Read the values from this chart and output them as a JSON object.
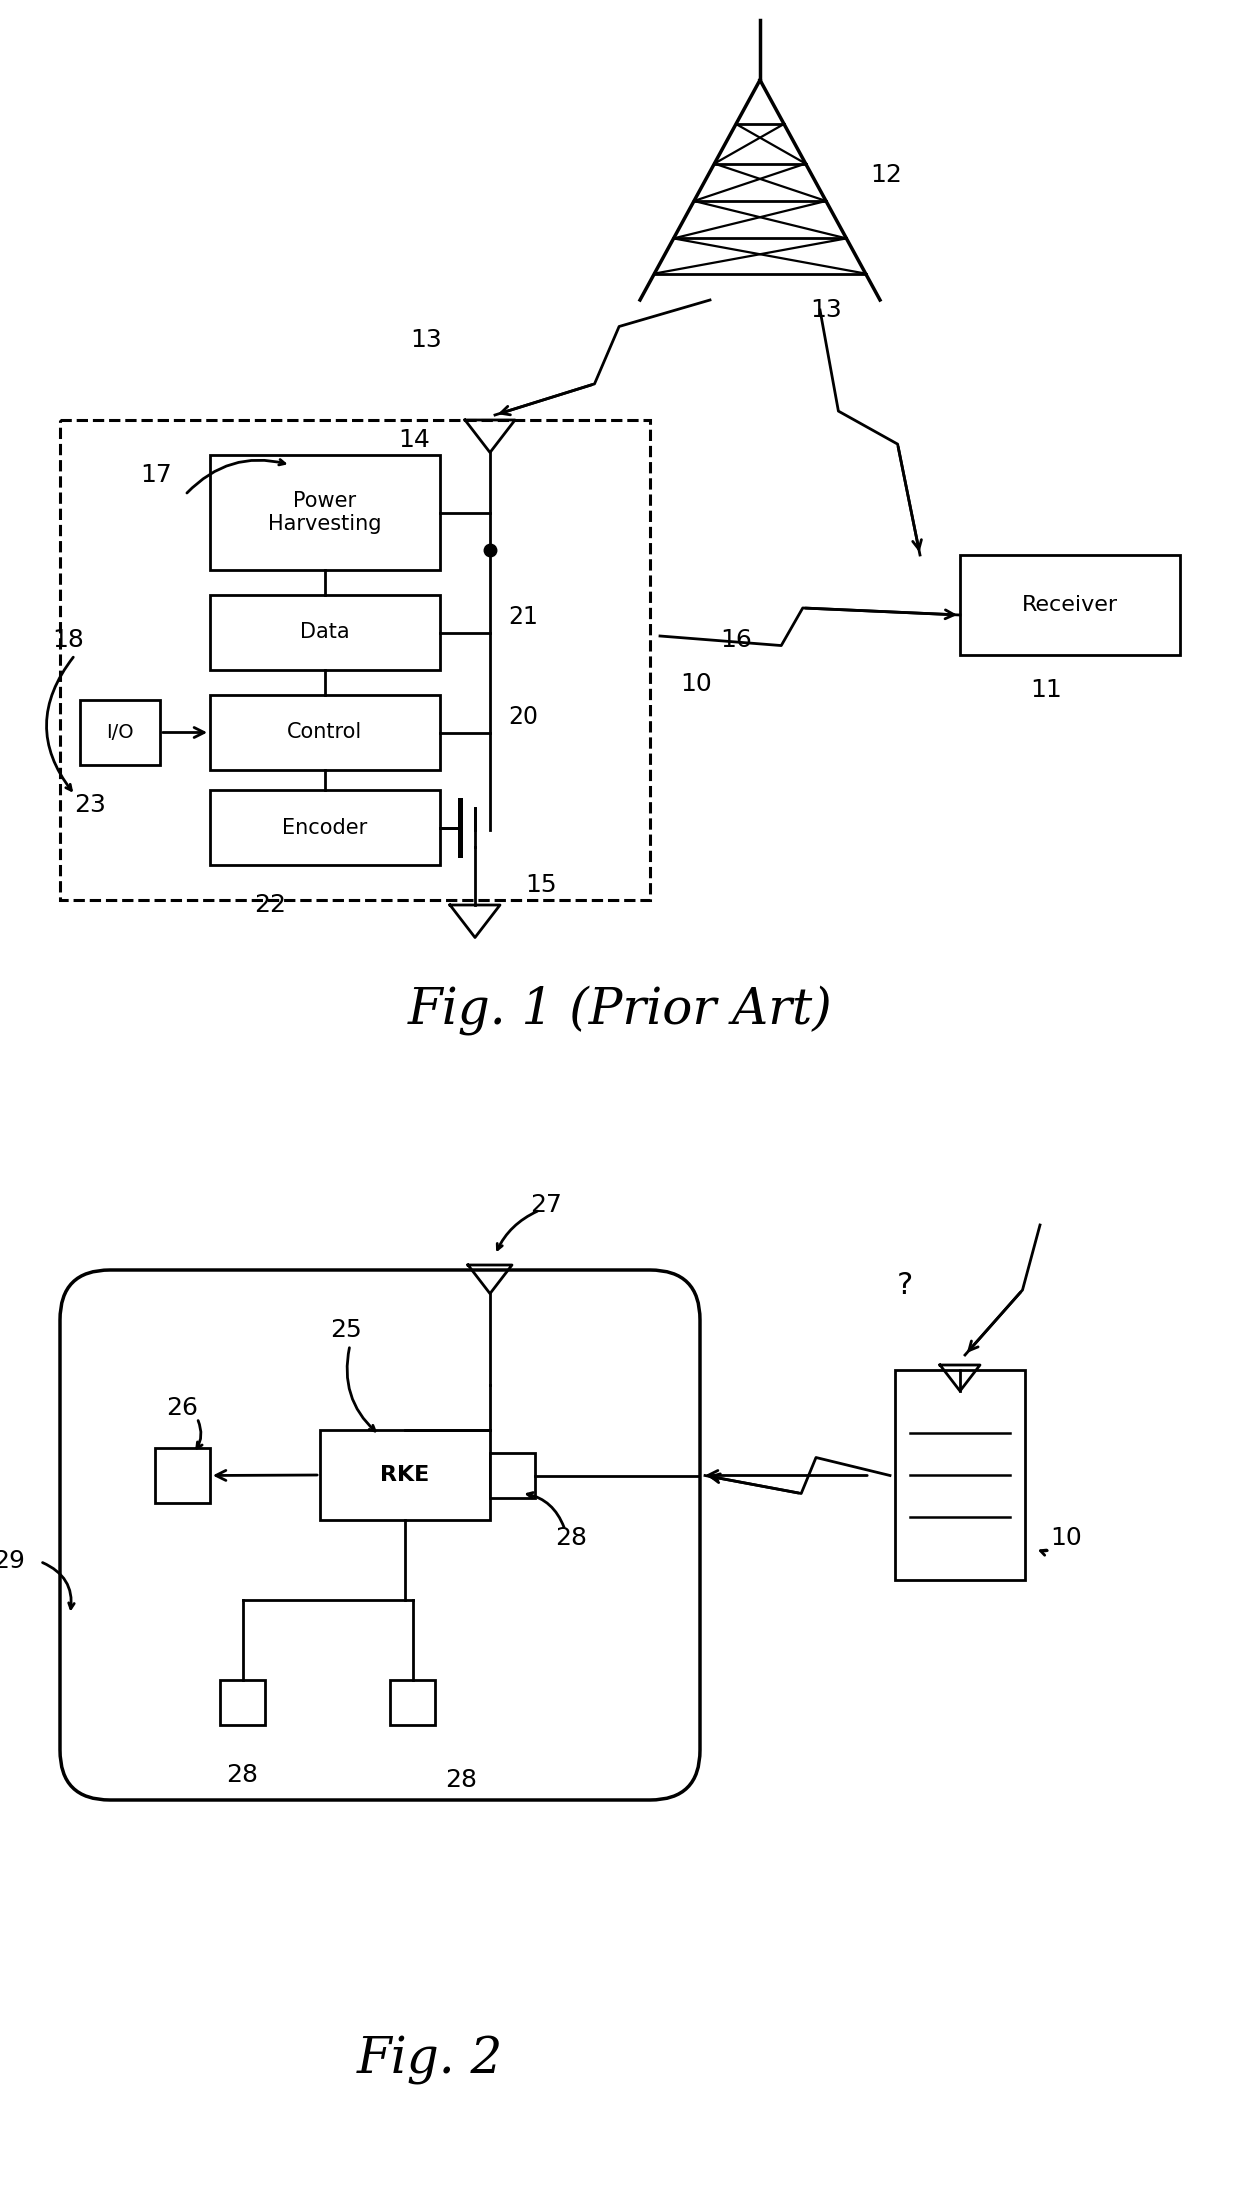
{
  "fig_width": 12.4,
  "fig_height": 21.88,
  "bg_color": "#ffffff",
  "line_color": "#000000",
  "fig1_title": "Fig. 1 (Prior Art)",
  "fig2_title": "Fig. 2",
  "labels": {
    "10": "10",
    "11": "11",
    "12": "12",
    "13": "13",
    "14": "14",
    "15": "15",
    "16": "16",
    "17": "17",
    "18": "18",
    "20": "20",
    "21": "21",
    "22": "22",
    "23": "23",
    "25": "25",
    "26": "26",
    "27": "27",
    "28": "28",
    "29": "29",
    "RKE": "RKE",
    "receiver": "Receiver",
    "power": "Power\nHarvesting",
    "data": "Data",
    "control": "Control",
    "encoder": "Encoder",
    "io": "I/O",
    "question": "?"
  }
}
